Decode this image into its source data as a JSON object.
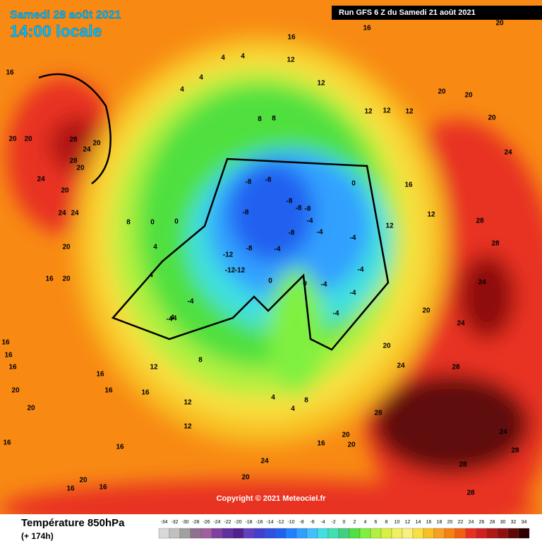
{
  "header": {
    "date": "Samedi 28 août 2021",
    "time": "14:00 locale",
    "run": "Run GFS 6 Z du Samedi 21 août 2021"
  },
  "copyright": "Copyright © 2021 Meteociel.fr",
  "map_labels": [
    16,
    20,
    20,
    28,
    24,
    20,
    28,
    20,
    24,
    20,
    24,
    24,
    20,
    20,
    16,
    16,
    16,
    16,
    20,
    20,
    16,
    16,
    20,
    16,
    16,
    16,
    16,
    16,
    12,
    12,
    12,
    8,
    4,
    -4,
    -4,
    4,
    8,
    4,
    0,
    0,
    4,
    4,
    4,
    4,
    8,
    8,
    12,
    12,
    16,
    16,
    20,
    20,
    20,
    20,
    24,
    28,
    28,
    24,
    20,
    24,
    20,
    24,
    28,
    28,
    24,
    28,
    28,
    28,
    20,
    24,
    20,
    20,
    16,
    4,
    4,
    8,
    -8,
    -8,
    -8,
    -8,
    -4,
    -12,
    -12,
    -12,
    -8,
    -8,
    -8,
    -4,
    -8,
    -4,
    0,
    -4,
    -4,
    0,
    0,
    -4,
    -4,
    -4,
    -4,
    12,
    16,
    12,
    12,
    12,
    12
  ],
  "legend": {
    "title": "Température 850hPa",
    "subtitle": "(+ 174h)",
    "ticks": [
      -34,
      -32,
      -30,
      -28,
      -26,
      -24,
      -22,
      -20,
      -18,
      -16,
      -14,
      -12,
      -10,
      -8,
      -6,
      -4,
      -2,
      0,
      2,
      4,
      6,
      8,
      10,
      12,
      14,
      16,
      18,
      20,
      22,
      24,
      26,
      28,
      30,
      32,
      34
    ],
    "colors": [
      "#d8d8d8",
      "#c0c0c0",
      "#a0a0a0",
      "#907090",
      "#a060a0",
      "#8040a0",
      "#6030a0",
      "#502090",
      "#6040c0",
      "#4040d0",
      "#3050e0",
      "#2060f0",
      "#2080ff",
      "#30a0ff",
      "#40c0ff",
      "#40e0e0",
      "#40e0b0",
      "#40d080",
      "#50e040",
      "#80f040",
      "#b0f040",
      "#d8f040",
      "#f0f060",
      "#f8f080",
      "#f8e040",
      "#f8c020",
      "#f8a020",
      "#f88010",
      "#f06010",
      "#e83020",
      "#d02020",
      "#b01818",
      "#901010",
      "#600808",
      "#300000"
    ]
  }
}
